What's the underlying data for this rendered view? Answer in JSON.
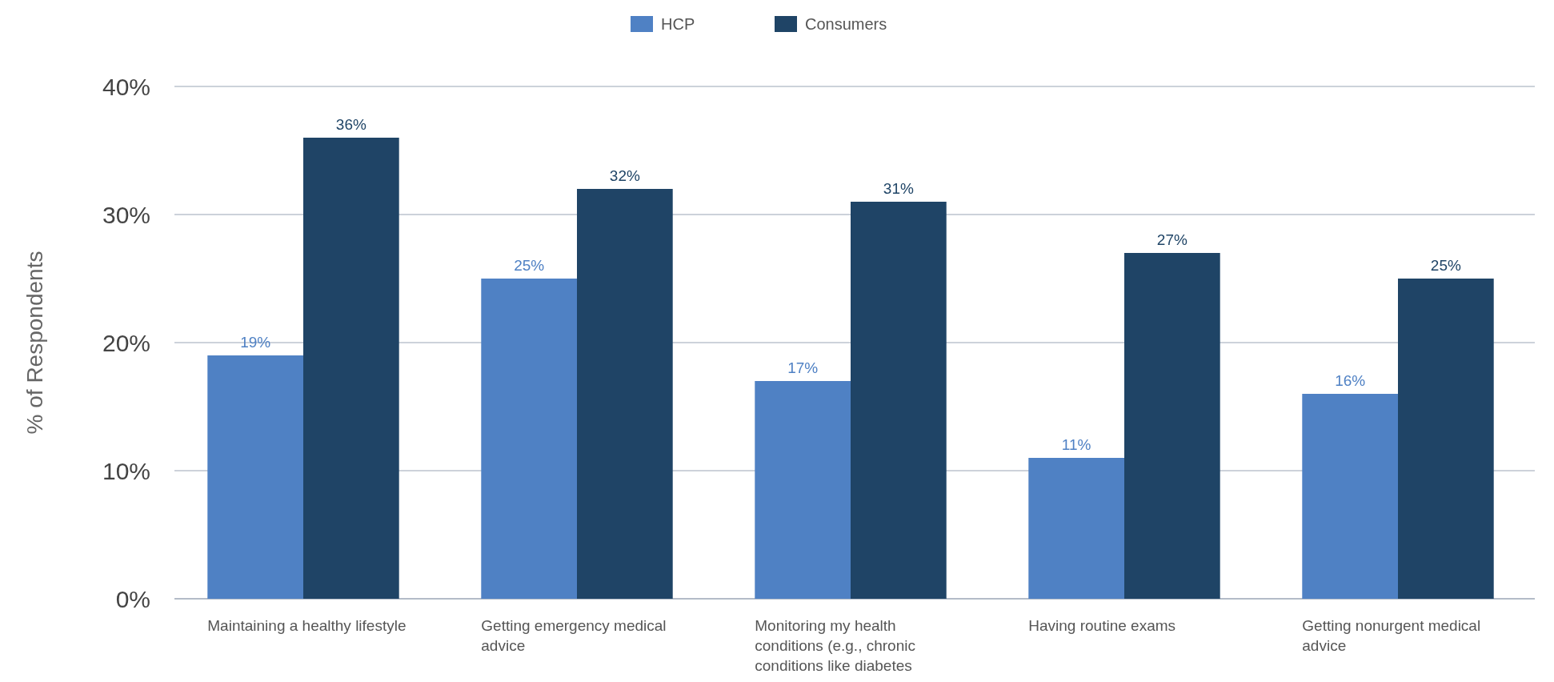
{
  "chart_data": {
    "type": "bar",
    "ylabel": "% of Respondents",
    "categories": [
      "Maintaining a healthy lifestyle",
      "Getting emergency medical advice",
      "Monitoring my health conditions (e.g., chronic conditions like diabetes",
      "Having routine exams",
      "Getting nonurgent medical advice"
    ],
    "series": [
      {
        "name": "HCP",
        "color": "#4f81c4",
        "values": [
          19,
          25,
          17,
          11,
          16
        ],
        "value_labels": [
          "19%",
          "25%",
          "17%",
          "11%",
          "16%"
        ]
      },
      {
        "name": "Consumers",
        "color": "#1f4466",
        "values": [
          36,
          32,
          31,
          27,
          25
        ],
        "value_labels": [
          "36%",
          "32%",
          "31%",
          "27%",
          "25%"
        ]
      }
    ],
    "ylim": [
      0,
      40
    ],
    "yticks": [
      {
        "value": 0,
        "label": "0%"
      },
      {
        "value": 10,
        "label": "10%"
      },
      {
        "value": 20,
        "label": "20%"
      },
      {
        "value": 30,
        "label": "30%"
      },
      {
        "value": 40,
        "label": "40%"
      }
    ],
    "grid": "y",
    "legend": "top"
  }
}
